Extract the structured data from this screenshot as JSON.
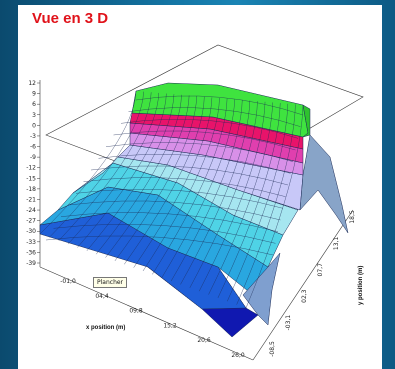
{
  "title": "Vue en 3 D",
  "tooltip": "Plancher",
  "chart_data": {
    "type": "surface",
    "title": "Vue en 3 D",
    "xlabel": "x position (m)",
    "ylabel": "y position (m)",
    "x_ticks": [
      "-01,0",
      "04,4",
      "09,8",
      "15,2",
      "20,6",
      "26,0"
    ],
    "y_ticks": [
      "-08,5",
      "-03,1",
      "02,3",
      "07,7",
      "13,1",
      "18,5"
    ],
    "z_ticks": [
      "12",
      "9",
      "6",
      "3",
      "0",
      "-3",
      "-6",
      "-9",
      "-12",
      "-15",
      "-18",
      "-21",
      "-24",
      "-27",
      "-30",
      "-33",
      "-36",
      "-39"
    ],
    "colors": [
      "#1018b0",
      "#1f5fd8",
      "#29a7e0",
      "#4fd3e6",
      "#a6e6f0",
      "#c8c8f8",
      "#d890e8",
      "#e03fae",
      "#e8136a",
      "#3fe33f"
    ]
  }
}
